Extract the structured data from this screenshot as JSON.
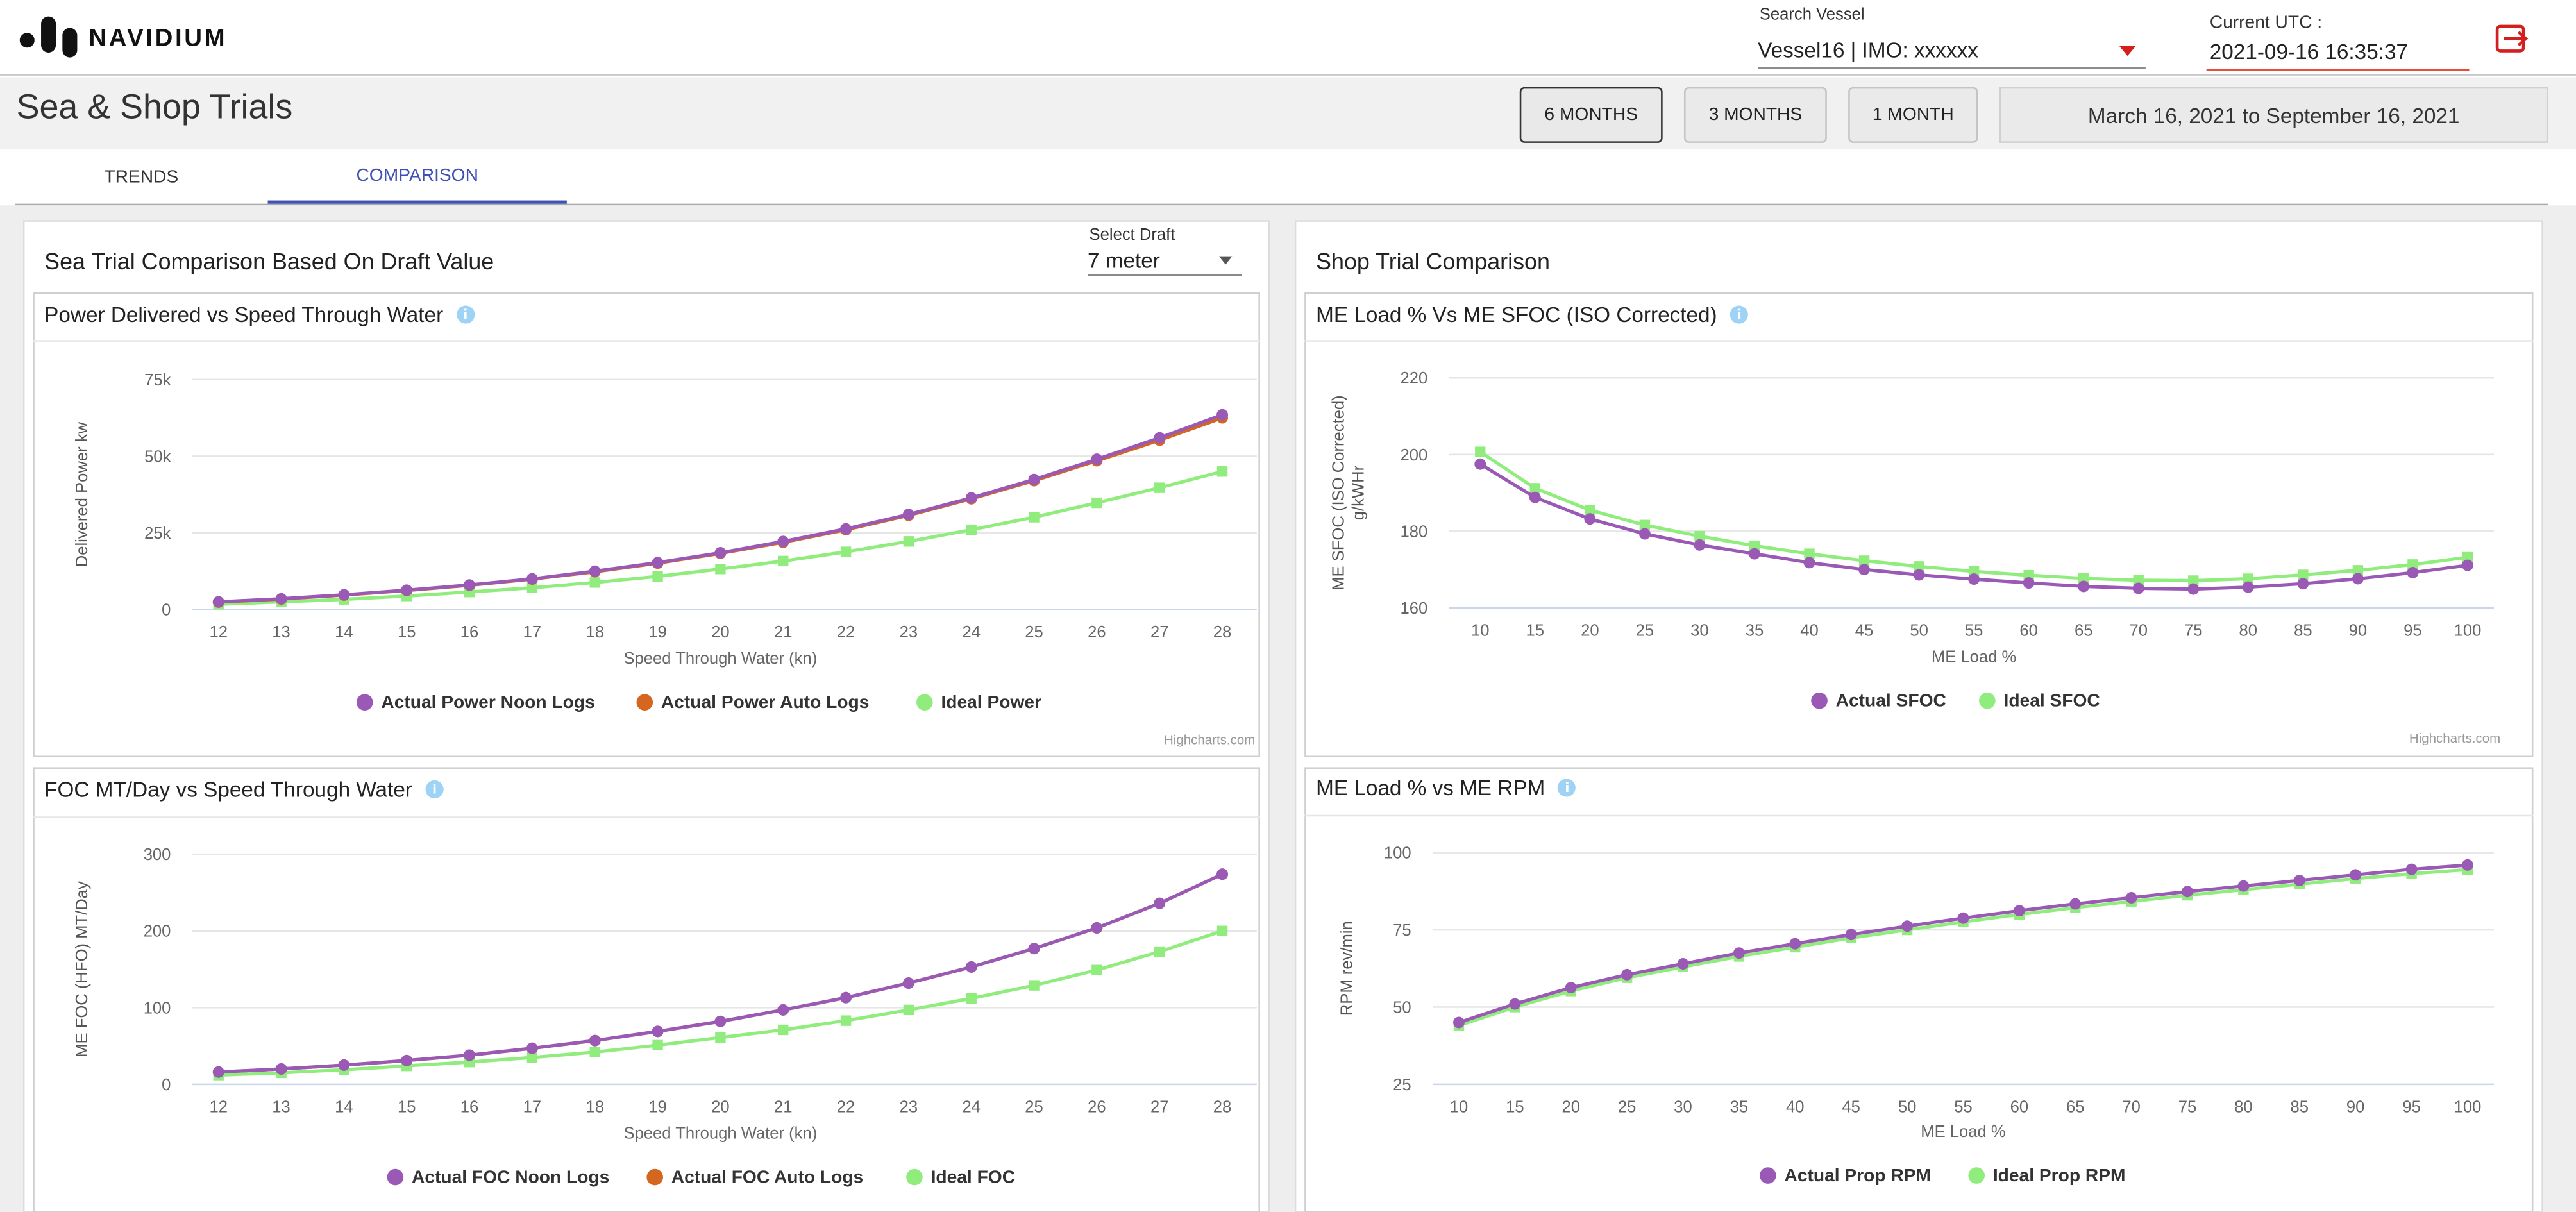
{
  "app": {
    "brand": "NAVIDIUM",
    "page_title": "Sea & Shop Trials"
  },
  "header": {
    "vessel_label": "Search Vessel",
    "vessel_value": "Vessel16 | IMO: xxxxxx",
    "utc_label": "Current UTC :",
    "utc_value": "2021-09-16 16:35:37",
    "logout_icon": "logout-icon"
  },
  "range_buttons": [
    {
      "label": "6 MONTHS",
      "active": true
    },
    {
      "label": "3 MONTHS",
      "active": false
    },
    {
      "label": "1 MONTH",
      "active": false
    }
  ],
  "date_range": "March 16, 2021 to September 16, 2021",
  "tabs": [
    {
      "label": "TRENDS",
      "active": false
    },
    {
      "label": "COMPARISON",
      "active": true
    }
  ],
  "sea_section": {
    "title": "Sea Trial Comparison Based On Draft Value",
    "draft_label": "Select Draft",
    "draft_value": "7 meter"
  },
  "shop_section": {
    "title": "Shop Trial Comparison"
  },
  "colors": {
    "purple": "#9b59b6",
    "orange": "#d4661f",
    "green": "#90ed7d",
    "accent": "#3f51b5",
    "info": "#9fd3f5",
    "danger": "#d41f1f"
  },
  "credits": "Highcharts.com",
  "chart_data": [
    {
      "id": "power",
      "type": "line",
      "title": "Power Delivered vs Speed Through Water",
      "xlabel": "Speed Through Water (kn)",
      "ylabel": "Delivered Power kw",
      "x": [
        12,
        13,
        14,
        15,
        16,
        17,
        18,
        19,
        20,
        21,
        22,
        23,
        24,
        25,
        26,
        27,
        28
      ],
      "ylim": [
        0,
        75000
      ],
      "yticks": [
        0,
        25000,
        50000,
        75000
      ],
      "ytick_labels": [
        "0",
        "25k",
        "50k",
        "75k"
      ],
      "legend": "bottom-center",
      "grid": true,
      "series": [
        {
          "name": "Actual Power Noon Logs",
          "color": "#9b59b6",
          "marker": "circle",
          "values": [
            2500,
            3500,
            4800,
            6300,
            8000,
            10000,
            12500,
            15300,
            18500,
            22200,
            26300,
            31000,
            36400,
            42400,
            49000,
            56000,
            63500
          ]
        },
        {
          "name": "Actual Power Auto Logs",
          "color": "#d4661f",
          "marker": "circle",
          "values": [
            2400,
            3400,
            4700,
            6200,
            7900,
            9900,
            12300,
            15100,
            18300,
            21900,
            26000,
            30700,
            36100,
            42000,
            48500,
            55200,
            62500
          ]
        },
        {
          "name": "Ideal Power",
          "color": "#90ed7d",
          "marker": "square",
          "values": [
            1700,
            2500,
            3300,
            4400,
            5700,
            7100,
            8800,
            10800,
            13200,
            15800,
            18800,
            22200,
            26000,
            30100,
            34800,
            39700,
            45000
          ]
        }
      ]
    },
    {
      "id": "foc",
      "type": "line",
      "title": "FOC MT/Day vs Speed Through Water",
      "xlabel": "Speed Through Water (kn)",
      "ylabel": "ME FOC (HFO) MT/Day",
      "x": [
        12,
        13,
        14,
        15,
        16,
        17,
        18,
        19,
        20,
        21,
        22,
        23,
        24,
        25,
        26,
        27,
        28
      ],
      "ylim": [
        0,
        300
      ],
      "yticks": [
        0,
        100,
        200,
        300
      ],
      "ytick_labels": [
        "0",
        "100",
        "200",
        "300"
      ],
      "legend": "bottom-center",
      "grid": true,
      "series": [
        {
          "name": "Actual FOC Noon Logs",
          "color": "#9b59b6",
          "marker": "circle",
          "values": [
            16,
            20,
            25,
            31,
            38,
            47,
            57,
            69,
            82,
            97,
            113,
            132,
            153,
            177,
            204,
            236,
            274
          ]
        },
        {
          "name": "Actual FOC Auto Logs",
          "color": "#d4661f",
          "marker": "circle",
          "values": [
            16,
            20,
            25,
            31,
            38,
            47,
            57,
            69,
            82,
            97,
            113,
            132,
            153,
            177,
            204,
            236,
            274
          ]
        },
        {
          "name": "Ideal FOC",
          "color": "#90ed7d",
          "marker": "square",
          "values": [
            12,
            15,
            19,
            24,
            29,
            35,
            42,
            51,
            61,
            71,
            83,
            97,
            112,
            129,
            149,
            173,
            200
          ]
        }
      ]
    },
    {
      "id": "sfoc",
      "type": "line",
      "title": "ME Load % Vs ME SFOC (ISO Corrected)",
      "xlabel": "ME Load %",
      "ylabel": "ME SFOC (ISO Corrected) g/kWHr",
      "x": [
        10,
        15,
        20,
        25,
        30,
        35,
        40,
        45,
        50,
        55,
        60,
        65,
        70,
        75,
        80,
        85,
        90,
        95,
        100
      ],
      "ylim": [
        160,
        220
      ],
      "yticks": [
        160,
        180,
        200,
        220
      ],
      "ytick_labels": [
        "160",
        "180",
        "200",
        "220"
      ],
      "legend": "bottom-center",
      "grid": true,
      "series": [
        {
          "name": "Actual SFOC",
          "color": "#9b59b6",
          "marker": "circle",
          "values": [
            197.5,
            188.8,
            183.2,
            179.3,
            176.4,
            174.1,
            171.8,
            170.0,
            168.6,
            167.5,
            166.5,
            165.6,
            165.1,
            164.9,
            165.4,
            166.3,
            167.6,
            169.2,
            171.1
          ]
        },
        {
          "name": "Ideal SFOC",
          "color": "#90ed7d",
          "marker": "square",
          "values": [
            200.7,
            191.2,
            185.5,
            181.6,
            178.7,
            176.2,
            174.1,
            172.3,
            170.8,
            169.5,
            168.5,
            167.7,
            167.2,
            167.1,
            167.6,
            168.6,
            169.8,
            171.3,
            173.2
          ]
        }
      ]
    },
    {
      "id": "rpm",
      "type": "line",
      "title": "ME Load % vs ME RPM",
      "xlabel": "ME Load %",
      "ylabel": "RPM rev/min",
      "x": [
        10,
        15,
        20,
        25,
        30,
        35,
        40,
        45,
        50,
        55,
        60,
        65,
        70,
        75,
        80,
        85,
        90,
        95,
        100
      ],
      "ylim": [
        25,
        100
      ],
      "yticks": [
        25,
        50,
        75,
        100
      ],
      "ytick_labels": [
        "25",
        "50",
        "75",
        "100"
      ],
      "legend": "bottom-center",
      "grid": true,
      "series": [
        {
          "name": "Actual Prop RPM",
          "color": "#9b59b6",
          "marker": "circle",
          "values": [
            45,
            51,
            56.3,
            60.5,
            64,
            67.5,
            70.5,
            73.5,
            76.2,
            78.8,
            81.2,
            83.4,
            85.4,
            87.4,
            89.2,
            91,
            92.8,
            94.6,
            96
          ]
        },
        {
          "name": "Ideal Prop RPM",
          "color": "#90ed7d",
          "marker": "square",
          "values": [
            44,
            50,
            55.2,
            59.5,
            63,
            66.4,
            69.4,
            72.4,
            75,
            77.6,
            80,
            82.2,
            84.2,
            86.2,
            88,
            89.8,
            91.6,
            93.2,
            94.5
          ]
        }
      ]
    }
  ]
}
